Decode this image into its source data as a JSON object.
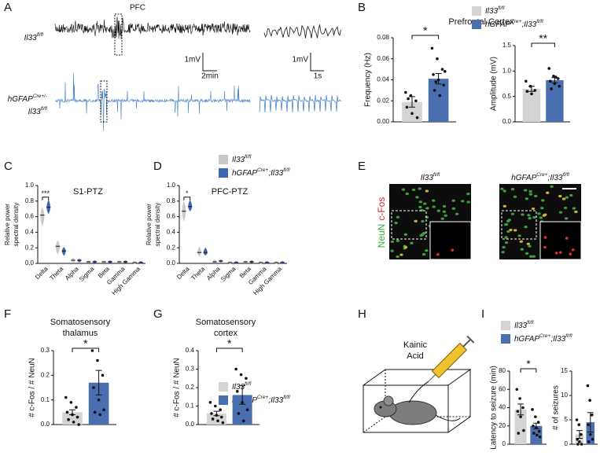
{
  "figure": {
    "panel_labels": [
      "A",
      "B",
      "C",
      "D",
      "E",
      "F",
      "G",
      "H",
      "I"
    ],
    "trace_title": "PFC",
    "trace_ctrl_label": "Il33fl/fl",
    "trace_cre_label": [
      "hGFAPCre+/-",
      "Il33fl/fl"
    ],
    "scale_labels": [
      "1mV",
      "2min",
      "1mV",
      "1s"
    ],
    "image_titles": [
      "Il33fl/fl",
      "hGFAPCre+;Il33fl/fl"
    ],
    "stain_labels": [
      "NeuN",
      "c-Fos"
    ],
    "drug_label": [
      "Kainic",
      "Acid"
    ]
  },
  "chart_data": [
    {
      "type": "bar",
      "title": [
        "Prefrontal Cortex"
      ],
      "ylabel": [
        "Frequency (Hz)"
      ],
      "significance": "*",
      "legend": true,
      "ylim": [
        0,
        0.08
      ],
      "yticks": [
        {
          "value": 0,
          "label": "0.00"
        },
        {
          "value": 0.02,
          "label": "0.02"
        },
        {
          "value": 0.04,
          "label": "0.04"
        },
        {
          "value": 0.06,
          "label": "0.06"
        },
        {
          "value": 0.08,
          "label": "0.08"
        }
      ],
      "series": [
        {
          "name": "Il33fl/fl",
          "color": "#d4d4d4",
          "values": [
            0.019
          ],
          "errors": [
            0.005
          ],
          "points": [
            0.028,
            0.025,
            0.02,
            0.014,
            0.008,
            0.004,
            0.022
          ]
        },
        {
          "name": "hGFAPCre+;Il33fl/fl",
          "color": "#4a6fb0",
          "values": [
            0.041
          ],
          "errors": [
            0.005
          ],
          "points": [
            0.07,
            0.06,
            0.05,
            0.045,
            0.04,
            0.035,
            0.03,
            0.025,
            0.048,
            0.038
          ]
        }
      ]
    },
    {
      "type": "bar",
      "ylabel": [
        "Amplitude (mV)"
      ],
      "significance": "**",
      "ylim": [
        0,
        1.5
      ],
      "yticks": [
        {
          "value": 0,
          "label": "0.0"
        },
        {
          "value": 0.5,
          "label": "0.5"
        },
        {
          "value": 1,
          "label": "1.0"
        },
        {
          "value": 1.5,
          "label": "1.5"
        }
      ],
      "series": [
        {
          "color": "#d4d4d4",
          "values": [
            0.65
          ],
          "errors": [
            0.05
          ],
          "points": [
            0.8,
            0.7,
            0.62,
            0.6,
            0.55
          ]
        },
        {
          "color": "#4a6fb0",
          "values": [
            0.82
          ],
          "errors": [
            0.05
          ],
          "points": [
            1.05,
            0.9,
            0.85,
            0.8,
            0.75,
            0.7,
            0.65,
            0.88
          ]
        }
      ]
    },
    {
      "type": "violin",
      "title": [
        "S1-PTZ"
      ],
      "ylabel": [
        "Relative power",
        "spectral density"
      ],
      "significance": "***",
      "categories": [
        "Delta",
        "Theta",
        "Alpha",
        "Sigma",
        "Beta",
        "Gamma",
        "High Gamma"
      ],
      "ylim": [
        0,
        1
      ],
      "yticks": [
        {
          "value": 0,
          "label": "0.0"
        },
        {
          "value": 0.2,
          "label": "0.2"
        },
        {
          "value": 0.4,
          "label": "0.4"
        },
        {
          "value": 0.6,
          "label": "0.6"
        },
        {
          "value": 0.8,
          "label": "0.8"
        },
        {
          "value": 1,
          "label": "1.0"
        }
      ],
      "series": [
        {
          "color": "#c8c8c8",
          "values": [
            0.62,
            0.22,
            0.04,
            0.02,
            0.02,
            0.02,
            0.01
          ],
          "low": [
            0.5,
            0.13,
            0.02,
            0.01,
            0.01,
            0.01,
            0
          ],
          "high": [
            0.7,
            0.28,
            0.06,
            0.03,
            0.03,
            0.03,
            0.02
          ]
        },
        {
          "color": "#3f67ad",
          "values": [
            0.72,
            0.16,
            0.04,
            0.02,
            0.02,
            0.02,
            0.01
          ],
          "low": [
            0.65,
            0.11,
            0.02,
            0.01,
            0.01,
            0.01,
            0
          ],
          "high": [
            0.8,
            0.2,
            0.05,
            0.03,
            0.03,
            0.03,
            0.02
          ]
        }
      ]
    },
    {
      "type": "violin",
      "title": [
        "PFC-PTZ"
      ],
      "ylabel": [
        "Relative power",
        "spectral density"
      ],
      "significance": "*",
      "legend": true,
      "categories": [
        "Delta",
        "Theta",
        "Alpha",
        "Sigma",
        "Beta",
        "Gamma",
        "High Gamma"
      ],
      "ylim": [
        0,
        1
      ],
      "yticks": [
        {
          "value": 0,
          "label": "0.0"
        },
        {
          "value": 0.2,
          "label": "0.2"
        },
        {
          "value": 0.4,
          "label": "0.4"
        },
        {
          "value": 0.6,
          "label": "0.6"
        },
        {
          "value": 0.8,
          "label": "0.8"
        },
        {
          "value": 1,
          "label": "1.0"
        }
      ],
      "series": [
        {
          "name": "Il33fl/fl",
          "color": "#c8c8c8",
          "values": [
            0.67,
            0.14,
            0.02,
            0.01,
            0.02,
            0.01,
            0.01
          ],
          "low": [
            0.56,
            0.1,
            0.01,
            0,
            0.01,
            0,
            0
          ],
          "high": [
            0.78,
            0.2,
            0.04,
            0.02,
            0.03,
            0.02,
            0.02
          ]
        },
        {
          "name": "hGFAPCre+;Il33fl/fl",
          "color": "#3f67ad",
          "values": [
            0.73,
            0.14,
            0.03,
            0.01,
            0.02,
            0.01,
            0.01
          ],
          "low": [
            0.68,
            0.11,
            0.02,
            0,
            0.01,
            0,
            0
          ],
          "high": [
            0.8,
            0.19,
            0.04,
            0.02,
            0.03,
            0.02,
            0.02
          ]
        }
      ]
    },
    {
      "type": "bar",
      "title": [
        "Somatosensory",
        "thalamus"
      ],
      "ylabel": [
        "# c-Fos / # NeuN"
      ],
      "significance": "*",
      "ylim": [
        0,
        0.3
      ],
      "yticks": [
        {
          "value": 0,
          "label": "0.0"
        },
        {
          "value": 0.1,
          "label": "0.1"
        },
        {
          "value": 0.2,
          "label": "0.2"
        },
        {
          "value": 0.3,
          "label": "0.3"
        }
      ],
      "series": [
        {
          "color": "#d4d4d4",
          "values": [
            0.05
          ],
          "errors": [
            0.01
          ],
          "points": [
            0.11,
            0.09,
            0.07,
            0.05,
            0.04,
            0.03,
            0.02,
            0.01,
            0
          ]
        },
        {
          "color": "#4a6fb0",
          "values": [
            0.17
          ],
          "errors": [
            0.05
          ],
          "points": [
            0.3,
            0.26,
            0.2,
            0.15,
            0.1,
            0.06,
            0.05,
            0.04
          ]
        }
      ]
    },
    {
      "type": "bar",
      "title": [
        "Somatosensory",
        "cortex"
      ],
      "ylabel": [
        "# c-Fos / # NeuN"
      ],
      "significance": "*",
      "legend": true,
      "ylim": [
        0,
        0.4
      ],
      "yticks": [
        {
          "value": 0,
          "label": "0.0"
        },
        {
          "value": 0.1,
          "label": "0.1"
        },
        {
          "value": 0.2,
          "label": "0.2"
        },
        {
          "value": 0.3,
          "label": "0.3"
        },
        {
          "value": 0.4,
          "label": "0.4"
        }
      ],
      "series": [
        {
          "name": "Il33fl/fl",
          "color": "#d4d4d4",
          "values": [
            0.06
          ],
          "errors": [
            0.012
          ],
          "points": [
            0.12,
            0.1,
            0.08,
            0.06,
            0.05,
            0.04,
            0.03,
            0.02,
            0.01
          ]
        },
        {
          "name": "hGFAPCre+;Il33fl/fl",
          "color": "#4a6fb0",
          "values": [
            0.16
          ],
          "errors": [
            0.05
          ],
          "points": [
            0.3,
            0.27,
            0.25,
            0.18,
            0.12,
            0.08,
            0.06,
            0.02
          ]
        }
      ]
    },
    {
      "type": "bar",
      "ylabel": [
        "Latency to seizure (min)"
      ],
      "significance": "*",
      "legend": true,
      "ylim": [
        0,
        80
      ],
      "yticks": [
        0,
        20,
        40,
        60,
        80
      ],
      "series": [
        {
          "name": "Il33fl/fl",
          "color": "#d4d4d4",
          "values": [
            38
          ],
          "errors": [
            6
          ],
          "points": [
            60,
            50,
            40,
            36,
            30,
            15,
            12
          ]
        },
        {
          "name": "hGFAPCre+;Il33fl/fl",
          "color": "#4a6fb0",
          "values": [
            20
          ],
          "errors": [
            3
          ],
          "points": [
            38,
            30,
            24,
            20,
            18,
            14,
            12,
            10,
            8
          ]
        }
      ]
    },
    {
      "type": "bar",
      "ylabel": [
        "# of seizures"
      ],
      "ylim": [
        0,
        15
      ],
      "yticks": [
        0,
        5,
        10,
        15
      ],
      "series": [
        {
          "color": "#d4d4d4",
          "values": [
            2
          ],
          "errors": [
            0.8
          ],
          "points": [
            5,
            4,
            2,
            1,
            0.5,
            0,
            0
          ]
        },
        {
          "color": "#4a6fb0",
          "values": [
            4.5
          ],
          "errors": [
            2
          ],
          "points": [
            12,
            9,
            6,
            4,
            2,
            1,
            0.5
          ]
        }
      ]
    }
  ]
}
